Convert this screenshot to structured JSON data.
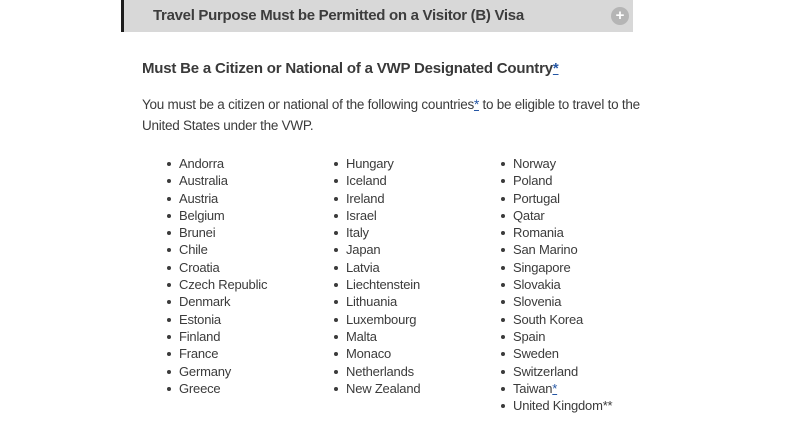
{
  "accordion": {
    "title": "Travel Purpose Must be Permitted on a Visitor (B) Visa",
    "toggle_icon": "plus-circle-icon",
    "toggle_glyph": "+"
  },
  "section": {
    "heading": "Must Be a Citizen or National of a VWP Designated Country",
    "heading_footnote_link": "*",
    "intro": {
      "before_link": "You must be a citizen or national of the following countries",
      "link": "*",
      "after_link": " to be eligible to travel to the United States under the VWP."
    }
  },
  "countries": {
    "columns": [
      {
        "items": [
          "Andorra",
          "Australia",
          "Austria",
          "Belgium",
          "Brunei",
          "Chile",
          "Croatia",
          "Czech Republic",
          "Denmark",
          "Estonia",
          "Finland",
          "France",
          "Germany",
          "Greece"
        ]
      },
      {
        "items": [
          "Hungary",
          "Iceland",
          "Ireland",
          "Israel",
          "Italy",
          "Japan",
          "Latvia",
          "Liechtenstein",
          "Lithuania",
          "Luxembourg",
          "Malta",
          "Monaco",
          "Netherlands",
          "New Zealand"
        ]
      },
      {
        "items": [
          "Norway",
          "Poland",
          "Portugal",
          "Qatar",
          "Romania",
          "San Marino",
          "Singapore",
          "Slovakia",
          "Slovenia",
          "South Korea",
          "Spain",
          "Sweden",
          "Switzerland",
          {
            "text": "Taiwan",
            "link": "*"
          },
          "United Kingdom**"
        ]
      }
    ]
  },
  "colors": {
    "accordion_bar_bg": "#d8d8d8",
    "accordion_bar_border": "#1d1d1d",
    "plus_icon_bg": "#b5b5b5",
    "text": "#3b3b3b",
    "link_blue": "#2456a4"
  }
}
